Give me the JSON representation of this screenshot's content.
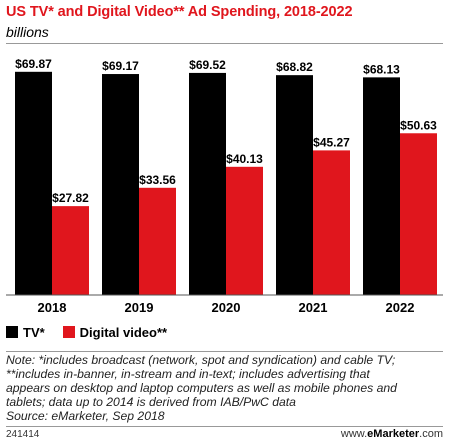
{
  "chart_data": {
    "type": "bar",
    "title": "US TV* and Digital Video** Ad Spending, 2018-2022",
    "subtitle": "billions",
    "categories": [
      "2018",
      "2019",
      "2020",
      "2021",
      "2022"
    ],
    "series": [
      {
        "name": "TV*",
        "color": "#000000",
        "values": [
          69.87,
          69.17,
          69.52,
          68.82,
          68.13
        ],
        "labels": [
          "$69.87",
          "$69.17",
          "$69.52",
          "$68.82",
          "$68.13"
        ]
      },
      {
        "name": "Digital video**",
        "color": "#e0161d",
        "values": [
          27.82,
          33.56,
          40.13,
          45.27,
          50.63
        ],
        "labels": [
          "$27.82",
          "$33.56",
          "$40.13",
          "$45.27",
          "$50.63"
        ]
      }
    ],
    "ylim": [
      0,
      72
    ],
    "grid": false,
    "legend_position": "bottom-left"
  },
  "note_lines": [
    "Note: *includes broadcast (network, spot and syndication) and cable TV;",
    "**includes in-banner, in-stream and in-text; includes advertising that",
    "appears on desktop and laptop computers as well as mobile phones and",
    "tablets; data up to 2014 is derived from IAB/PwC data",
    "Source: eMarketer, Sep 2018"
  ],
  "footer": {
    "id": "241414",
    "brand_prefix": "www.",
    "brand_bold": "eMarketer",
    "brand_suffix": ".com"
  }
}
